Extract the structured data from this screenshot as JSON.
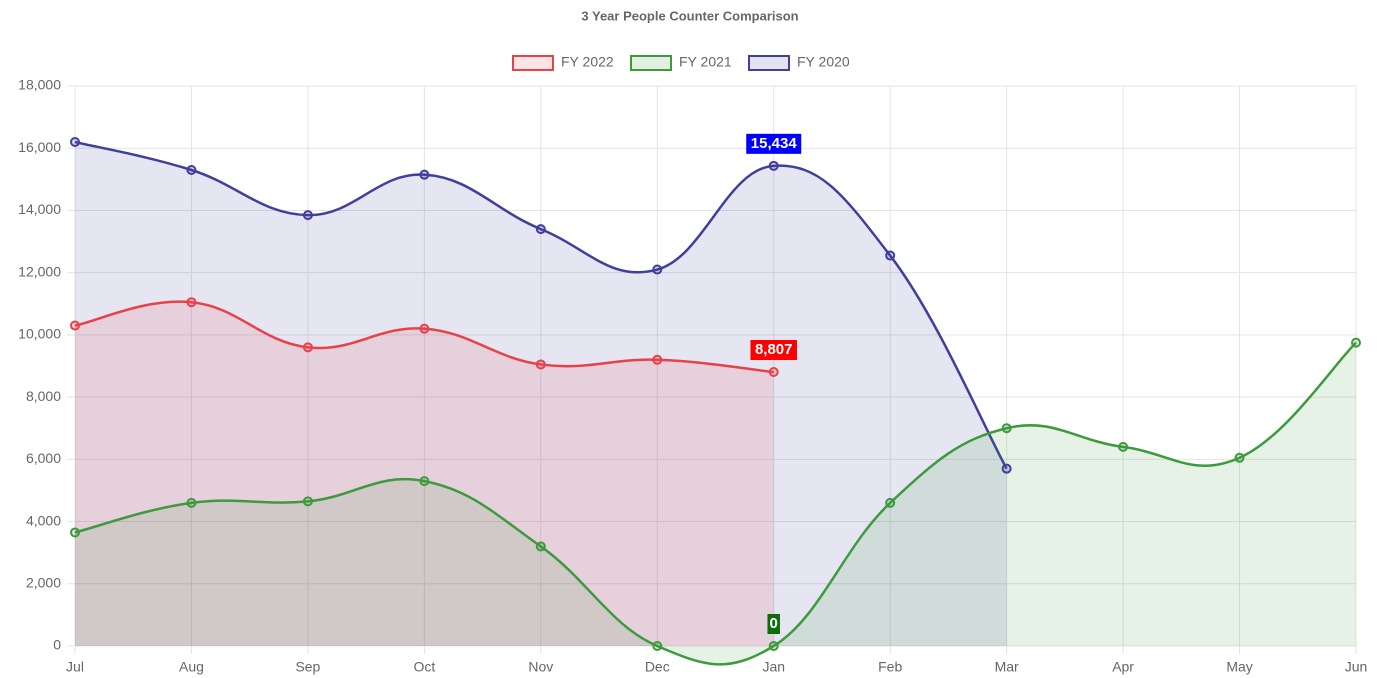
{
  "chart_data": {
    "type": "line",
    "title": "3 Year People Counter Comparison",
    "categories": [
      "Jul",
      "Aug",
      "Sep",
      "Oct",
      "Nov",
      "Dec",
      "Jan",
      "Feb",
      "Mar",
      "Apr",
      "May",
      "Jun"
    ],
    "series": [
      {
        "name": "FY 2022",
        "color": "#e8414a",
        "label_background": "#ff0000",
        "values": [
          10300,
          11050,
          9600,
          10200,
          9050,
          9200,
          8807,
          null,
          null,
          null,
          null,
          null
        ],
        "value_labels": [
          null,
          null,
          null,
          null,
          null,
          null,
          "8,807",
          null,
          null,
          null,
          null,
          null
        ]
      },
      {
        "name": "FY 2021",
        "color": "#3d9a3d",
        "label_background": "#0b6e0b",
        "values": [
          3650,
          4600,
          4650,
          5300,
          3200,
          0,
          0,
          4600,
          7000,
          6400,
          6050,
          9750
        ],
        "value_labels": [
          null,
          null,
          null,
          null,
          null,
          null,
          "0",
          null,
          null,
          null,
          null,
          null
        ]
      },
      {
        "name": "FY 2020",
        "color": "#3f3f9c",
        "label_background": "#0000ff",
        "values": [
          16200,
          15300,
          13850,
          15150,
          13400,
          12100,
          15434,
          12550,
          5700,
          null,
          null,
          null
        ],
        "value_labels": [
          null,
          null,
          null,
          null,
          null,
          null,
          "15,434",
          null,
          null,
          null,
          null,
          null
        ]
      }
    ],
    "ylim": [
      0,
      18000
    ],
    "yticks": [
      0,
      {
        "value": 2000,
        "label": "2,000"
      },
      {
        "value": 4000,
        "label": "4,000"
      },
      {
        "value": 6000,
        "label": "6,000"
      },
      {
        "value": 8000,
        "label": "8,000"
      },
      {
        "value": 10000,
        "label": "10,000"
      },
      {
        "value": 12000,
        "label": "12,000"
      },
      {
        "value": 14000,
        "label": "14,000"
      },
      {
        "value": 16000,
        "label": "16,000"
      },
      {
        "value": 18000,
        "label": "18,000"
      }
    ],
    "grid": true,
    "legend": "top"
  }
}
